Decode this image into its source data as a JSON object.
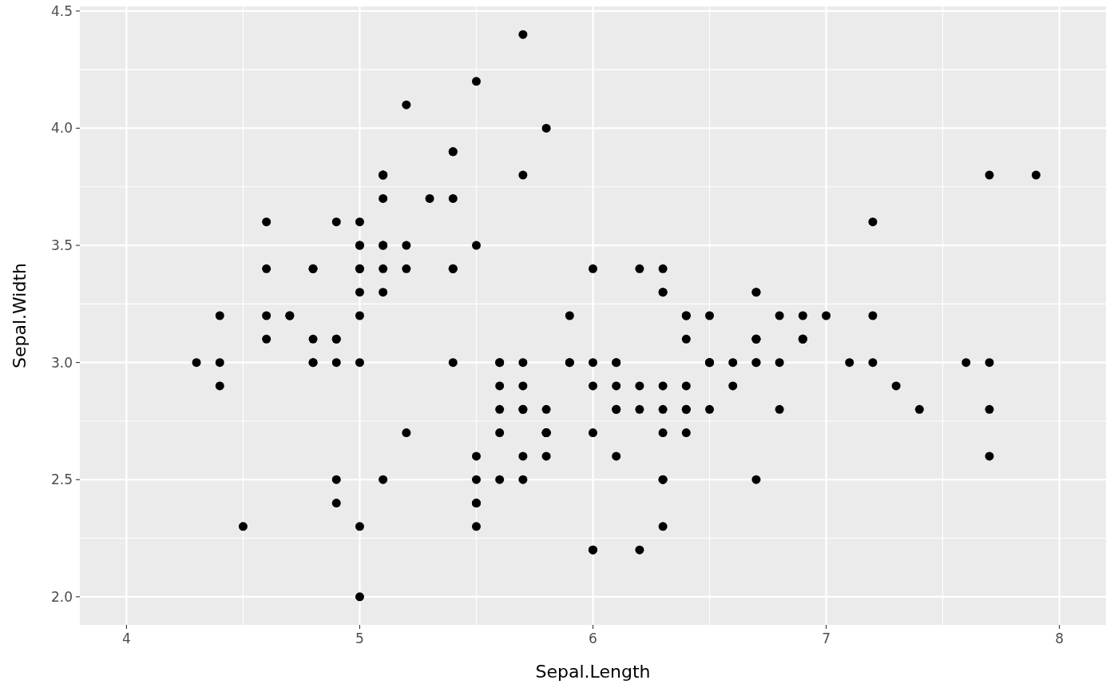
{
  "chart_data": {
    "type": "scatter",
    "xlabel": "Sepal.Length",
    "ylabel": "Sepal.Width",
    "xlim": [
      3.8,
      8.2
    ],
    "ylim": [
      1.88,
      4.52
    ],
    "xticks": [
      4,
      5,
      6,
      7,
      8
    ],
    "yticks": [
      {
        "value": 2,
        "label": "2.0"
      },
      {
        "value": 2.5,
        "label": "2.5"
      },
      {
        "value": 3,
        "label": "3.0"
      },
      {
        "value": 3.5,
        "label": "3.5"
      },
      {
        "value": 4,
        "label": "4.0"
      },
      {
        "value": 4.5,
        "label": "4.5"
      }
    ],
    "grid": true,
    "marker": "circle",
    "series": [
      {
        "color": "#000000",
        "x": [
          5.1,
          4.9,
          4.7,
          4.6,
          5.0,
          5.4,
          4.6,
          5.0,
          4.4,
          4.9,
          5.4,
          4.8,
          4.8,
          4.3,
          5.8,
          5.7,
          5.4,
          5.1,
          5.7,
          5.1,
          5.4,
          5.1,
          4.6,
          5.1,
          4.8,
          5.0,
          5.0,
          5.2,
          5.2,
          4.7,
          4.8,
          5.4,
          5.2,
          5.5,
          4.9,
          5.0,
          5.5,
          4.9,
          4.4,
          5.1,
          5.0,
          4.5,
          4.4,
          5.0,
          5.1,
          4.8,
          5.1,
          4.6,
          5.3,
          5.0,
          7.0,
          6.4,
          6.9,
          5.5,
          6.5,
          5.7,
          6.3,
          4.9,
          6.6,
          5.2,
          5.0,
          5.9,
          6.0,
          6.1,
          5.6,
          6.7,
          5.6,
          5.8,
          6.2,
          5.6,
          5.9,
          6.1,
          6.3,
          6.1,
          6.4,
          6.6,
          6.8,
          6.7,
          6.0,
          5.7,
          5.5,
          5.5,
          5.8,
          6.0,
          5.4,
          6.0,
          6.7,
          6.3,
          5.6,
          5.5,
          5.5,
          6.1,
          5.8,
          5.0,
          5.6,
          5.7,
          5.7,
          6.2,
          5.1,
          5.7,
          6.3,
          5.8,
          7.1,
          6.3,
          6.5,
          7.6,
          4.9,
          7.3,
          6.7,
          7.2,
          6.5,
          6.4,
          6.8,
          5.7,
          5.8,
          6.4,
          6.5,
          7.7,
          7.7,
          6.0,
          6.9,
          5.6,
          7.7,
          6.3,
          6.7,
          7.2,
          6.2,
          6.1,
          6.4,
          7.2,
          7.4,
          7.9,
          6.4,
          6.3,
          6.1,
          7.7,
          6.3,
          6.4,
          6.0,
          6.9,
          6.7,
          6.9,
          5.8,
          6.8,
          6.7,
          6.7,
          6.3,
          6.5,
          6.2,
          5.9
        ],
        "values": [
          3.5,
          3.0,
          3.2,
          3.1,
          3.6,
          3.9,
          3.4,
          3.4,
          2.9,
          3.1,
          3.7,
          3.4,
          3.0,
          3.0,
          4.0,
          4.4,
          3.9,
          3.5,
          3.8,
          3.8,
          3.4,
          3.7,
          3.6,
          3.3,
          3.4,
          3.0,
          3.4,
          3.5,
          3.4,
          3.2,
          3.1,
          3.4,
          4.1,
          4.2,
          3.1,
          3.2,
          3.5,
          3.6,
          3.0,
          3.4,
          3.5,
          2.3,
          3.2,
          3.5,
          3.8,
          3.0,
          3.8,
          3.2,
          3.7,
          3.3,
          3.2,
          3.2,
          3.1,
          2.3,
          2.8,
          2.8,
          3.3,
          2.4,
          2.9,
          2.7,
          2.0,
          3.0,
          2.2,
          2.9,
          2.9,
          3.1,
          3.0,
          2.7,
          2.2,
          2.5,
          3.2,
          2.8,
          2.5,
          2.8,
          2.9,
          3.0,
          2.8,
          3.0,
          2.9,
          2.6,
          2.4,
          2.4,
          2.7,
          2.7,
          3.0,
          3.4,
          3.1,
          2.3,
          3.0,
          2.5,
          2.6,
          3.0,
          2.6,
          2.3,
          2.7,
          3.0,
          2.9,
          2.9,
          2.5,
          2.8,
          3.3,
          2.7,
          3.0,
          2.9,
          3.0,
          3.0,
          2.5,
          2.9,
          2.5,
          3.6,
          3.2,
          2.7,
          3.0,
          2.5,
          2.8,
          3.2,
          3.0,
          3.8,
          2.6,
          2.2,
          3.2,
          2.8,
          2.8,
          2.7,
          3.3,
          3.2,
          2.8,
          3.0,
          2.8,
          3.0,
          2.8,
          3.8,
          2.8,
          2.8,
          2.6,
          3.0,
          3.4,
          3.1,
          3.0,
          3.1,
          3.1,
          3.1,
          2.7,
          3.2,
          3.3,
          3.0,
          2.5,
          3.0,
          3.4,
          3.0
        ]
      }
    ]
  }
}
